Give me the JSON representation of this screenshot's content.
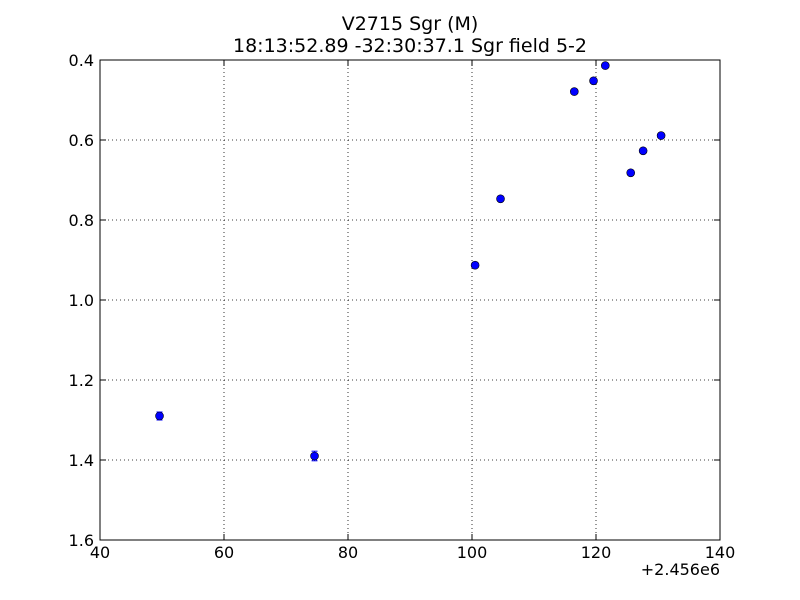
{
  "chart_data": {
    "type": "scatter",
    "title": "V2715 Sgr  (M)",
    "subtitle": "18:13:52.89 -32:30:37.1 Sgr field 5-2",
    "xlabel": "",
    "ylabel": "",
    "x_offset_label": "+2.456e6",
    "xlim": [
      40,
      140
    ],
    "ylim": [
      0.4,
      1.6
    ],
    "y_inverted": true,
    "grid": true,
    "marker_color": "#0000ff",
    "x_ticks": [
      40,
      60,
      80,
      100,
      120,
      140
    ],
    "x_tick_labels": [
      "40",
      "60",
      "80",
      "100",
      "120",
      "140"
    ],
    "y_ticks": [
      0.4,
      0.6,
      0.8,
      1.0,
      1.2,
      1.4,
      1.6
    ],
    "y_tick_labels": [
      "0.4",
      "0.6",
      "0.8",
      "1.0",
      "1.2",
      "1.4",
      "1.6"
    ],
    "points": [
      {
        "x": 49.6,
        "y": 1.29,
        "err": 0.01
      },
      {
        "x": 74.6,
        "y": 1.39,
        "err": 0.012
      },
      {
        "x": 100.5,
        "y": 0.913,
        "err": 0.007
      },
      {
        "x": 104.6,
        "y": 0.747,
        "err": 0.006
      },
      {
        "x": 116.5,
        "y": 0.479,
        "err": 0.005
      },
      {
        "x": 119.6,
        "y": 0.452,
        "err": 0.005
      },
      {
        "x": 121.5,
        "y": 0.414,
        "err": 0.005
      },
      {
        "x": 125.6,
        "y": 0.682,
        "err": 0.006
      },
      {
        "x": 127.6,
        "y": 0.627,
        "err": 0.005
      },
      {
        "x": 130.5,
        "y": 0.589,
        "err": 0.005
      }
    ]
  }
}
